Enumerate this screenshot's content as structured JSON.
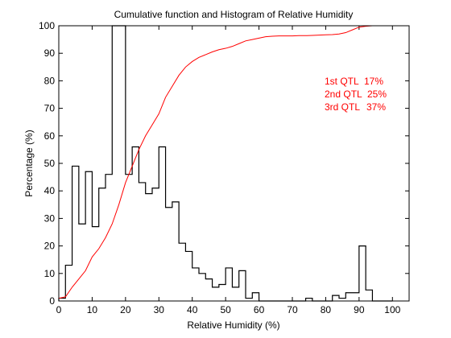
{
  "chart_data": {
    "type": "line",
    "title": "Cumulative function and Histogram of Relative Humidity",
    "xlabel": "Relative Humidity (%)",
    "ylabel": "Percentage (%)",
    "xlim": [
      0,
      105
    ],
    "ylim": [
      0,
      100
    ],
    "xticks": [
      0,
      10,
      20,
      30,
      40,
      50,
      60,
      70,
      80,
      90,
      100
    ],
    "yticks": [
      0,
      10,
      20,
      30,
      40,
      50,
      60,
      70,
      80,
      90,
      100
    ],
    "grid": false,
    "colors": {
      "histogram": "#000000",
      "cumulative": "#ff0000",
      "annotation": "#ff0000"
    },
    "histogram": {
      "bin_edges": [
        0,
        2,
        4,
        6,
        8,
        10,
        12,
        14,
        16,
        18,
        20,
        22,
        24,
        26,
        28,
        30,
        32,
        34,
        36,
        38,
        40,
        42,
        44,
        46,
        48,
        50,
        52,
        54,
        56,
        58,
        60,
        62,
        64,
        66,
        68,
        70,
        72,
        74,
        76,
        78,
        80,
        82,
        84,
        86,
        88,
        90,
        92,
        94,
        96,
        98,
        100
      ],
      "values": [
        1,
        13,
        49,
        28,
        47,
        27,
        41,
        46,
        100,
        100,
        46,
        56,
        43,
        39,
        41,
        56,
        34,
        36,
        21,
        18,
        12,
        10,
        8,
        5,
        6,
        12,
        5,
        11,
        1,
        3,
        0,
        0,
        0,
        0,
        0,
        0,
        0,
        1,
        0,
        0,
        0,
        2,
        1,
        3,
        3,
        20,
        4,
        0,
        0,
        0
      ]
    },
    "cumulative": {
      "x": [
        0,
        2,
        4,
        6,
        8,
        10,
        12,
        14,
        16,
        18,
        20,
        22,
        24,
        26,
        28,
        30,
        32,
        34,
        36,
        38,
        40,
        42,
        44,
        46,
        48,
        50,
        52,
        54,
        56,
        58,
        60,
        62,
        64,
        66,
        68,
        70,
        72,
        74,
        76,
        78,
        80,
        82,
        84,
        86,
        88,
        90,
        92,
        94,
        96,
        98,
        100,
        102
      ],
      "y": [
        1,
        1.5,
        5,
        8,
        11,
        16,
        19,
        23,
        28,
        35,
        43,
        49,
        55,
        60,
        64,
        68,
        74,
        78,
        82,
        85,
        87,
        88.5,
        89.5,
        90.5,
        91.3,
        91.8,
        92.5,
        93.5,
        94.5,
        95,
        95.5,
        96,
        96.2,
        96.3,
        96.3,
        96.3,
        96.4,
        96.4,
        96.5,
        96.6,
        96.7,
        96.8,
        97,
        97.5,
        98.5,
        99.5,
        99.8,
        100,
        100,
        100,
        100,
        100
      ]
    },
    "annotations": [
      {
        "label": "1st QTL",
        "value": "17%"
      },
      {
        "label": "2nd QTL",
        "value": "25%"
      },
      {
        "label": "3rd QTL",
        "value": "37%"
      }
    ]
  }
}
